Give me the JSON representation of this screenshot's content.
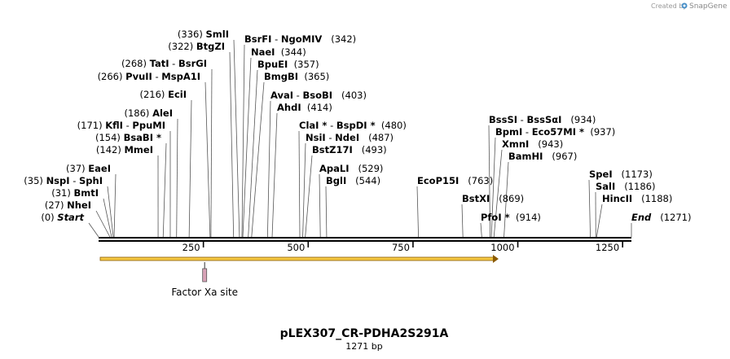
{
  "watermark": {
    "prefix": "Created by",
    "brand": "SnapGene",
    "logo_icon": "snapgene-logo-icon"
  },
  "sequence": {
    "name": "pLEX307_CR-PDHA2S291A",
    "length_label": "1271 bp",
    "length": 1271
  },
  "axis": {
    "ticks": [
      250,
      500,
      750,
      1000,
      1250
    ],
    "tick_labels": [
      "250",
      "500",
      "750",
      "1000",
      "1250"
    ]
  },
  "enzymes": [
    {
      "pos": 0,
      "parts": [
        {
          "t": "(0)",
          "b": false
        },
        {
          "t": " ",
          "b": false
        },
        {
          "t": "Start",
          "b": true,
          "i": true
        }
      ]
    },
    {
      "pos": 27,
      "parts": [
        {
          "t": "(27)",
          "b": false
        },
        {
          "t": " ",
          "b": false
        },
        {
          "t": "NheI",
          "b": true
        }
      ]
    },
    {
      "pos": 31,
      "parts": [
        {
          "t": "(31)",
          "b": false
        },
        {
          "t": " ",
          "b": false
        },
        {
          "t": "BmtI",
          "b": true
        }
      ]
    },
    {
      "pos": 35,
      "parts": [
        {
          "t": "(35)",
          "b": false
        },
        {
          "t": " ",
          "b": false
        },
        {
          "t": "NspI",
          "b": true
        },
        {
          "t": " - ",
          "b": false
        },
        {
          "t": "SphI",
          "b": true
        }
      ]
    },
    {
      "pos": 37,
      "parts": [
        {
          "t": "(37)",
          "b": false
        },
        {
          "t": " ",
          "b": false
        },
        {
          "t": "EaeI",
          "b": true
        }
      ]
    },
    {
      "pos": 142,
      "parts": [
        {
          "t": "(142)",
          "b": false
        },
        {
          "t": " ",
          "b": false
        },
        {
          "t": "MmeI",
          "b": true
        }
      ]
    },
    {
      "pos": 154,
      "parts": [
        {
          "t": "(154)",
          "b": false
        },
        {
          "t": " ",
          "b": false
        },
        {
          "t": "BsaBI *",
          "b": true
        }
      ]
    },
    {
      "pos": 171,
      "parts": [
        {
          "t": "(171)",
          "b": false
        },
        {
          "t": " ",
          "b": false
        },
        {
          "t": "KflI",
          "b": true
        },
        {
          "t": " - ",
          "b": false
        },
        {
          "t": "PpuMI",
          "b": true
        }
      ]
    },
    {
      "pos": 186,
      "parts": [
        {
          "t": "(186)",
          "b": false
        },
        {
          "t": " ",
          "b": false
        },
        {
          "t": "AleI",
          "b": true
        }
      ]
    },
    {
      "pos": 216,
      "parts": [
        {
          "t": "(216)",
          "b": false
        },
        {
          "t": " ",
          "b": false
        },
        {
          "t": "EciI",
          "b": true
        }
      ]
    },
    {
      "pos": 266,
      "parts": [
        {
          "t": "(266)",
          "b": false
        },
        {
          "t": " ",
          "b": false
        },
        {
          "t": "PvuII",
          "b": true
        },
        {
          "t": " - ",
          "b": false
        },
        {
          "t": "MspA1I",
          "b": true
        }
      ]
    },
    {
      "pos": 268,
      "parts": [
        {
          "t": "(268)",
          "b": false
        },
        {
          "t": " ",
          "b": false
        },
        {
          "t": "TatI",
          "b": true
        },
        {
          "t": " - ",
          "b": false
        },
        {
          "t": "BsrGI",
          "b": true
        }
      ]
    },
    {
      "pos": 322,
      "parts": [
        {
          "t": "(322)",
          "b": false
        },
        {
          "t": " ",
          "b": false
        },
        {
          "t": "BtgZI",
          "b": true
        }
      ]
    },
    {
      "pos": 336,
      "parts": [
        {
          "t": "(336)",
          "b": false
        },
        {
          "t": " ",
          "b": false
        },
        {
          "t": "SmlI",
          "b": true
        }
      ]
    },
    {
      "pos": 342,
      "parts": [
        {
          "t": "BsrFI",
          "b": true
        },
        {
          "t": " - ",
          "b": false
        },
        {
          "t": "NgoMIV",
          "b": true
        },
        {
          "t": "   (342)",
          "b": false
        }
      ]
    },
    {
      "pos": 344,
      "parts": [
        {
          "t": "NaeI",
          "b": true
        },
        {
          "t": "  (344)",
          "b": false
        }
      ]
    },
    {
      "pos": 357,
      "parts": [
        {
          "t": "BpuEI",
          "b": true
        },
        {
          "t": "  (357)",
          "b": false
        }
      ]
    },
    {
      "pos": 365,
      "parts": [
        {
          "t": "BmgBI",
          "b": true
        },
        {
          "t": "  (365)",
          "b": false
        }
      ]
    },
    {
      "pos": 403,
      "parts": [
        {
          "t": "AvaI",
          "b": true
        },
        {
          "t": " - ",
          "b": false
        },
        {
          "t": "BsoBI",
          "b": true
        },
        {
          "t": "   (403)",
          "b": false
        }
      ]
    },
    {
      "pos": 414,
      "parts": [
        {
          "t": "AhdI",
          "b": true
        },
        {
          "t": "  (414)",
          "b": false
        }
      ]
    },
    {
      "pos": 480,
      "parts": [
        {
          "t": "ClaI *",
          "b": true
        },
        {
          "t": " - ",
          "b": false
        },
        {
          "t": "BspDI *",
          "b": true
        },
        {
          "t": "  (480)",
          "b": false
        }
      ]
    },
    {
      "pos": 487,
      "parts": [
        {
          "t": "NsiI",
          "b": true
        },
        {
          "t": " - ",
          "b": false
        },
        {
          "t": "NdeI",
          "b": true
        },
        {
          "t": "   (487)",
          "b": false
        }
      ]
    },
    {
      "pos": 493,
      "parts": [
        {
          "t": "BstZ17I",
          "b": true
        },
        {
          "t": "   (493)",
          "b": false
        }
      ]
    },
    {
      "pos": 529,
      "parts": [
        {
          "t": "ApaLI",
          "b": true
        },
        {
          "t": "   (529)",
          "b": false
        }
      ]
    },
    {
      "pos": 544,
      "parts": [
        {
          "t": "BglI",
          "b": true
        },
        {
          "t": "   (544)",
          "b": false
        }
      ]
    },
    {
      "pos": 763,
      "parts": [
        {
          "t": "EcoP15I",
          "b": true
        },
        {
          "t": "   (763)",
          "b": false
        }
      ]
    },
    {
      "pos": 869,
      "parts": [
        {
          "t": "BstXI",
          "b": true
        },
        {
          "t": "   (869)",
          "b": false
        }
      ]
    },
    {
      "pos": 914,
      "parts": [
        {
          "t": "PfoI *",
          "b": true
        },
        {
          "t": "  (914)",
          "b": false
        }
      ]
    },
    {
      "pos": 934,
      "parts": [
        {
          "t": "BssSI",
          "b": true
        },
        {
          "t": " - ",
          "b": false
        },
        {
          "t": "BssSαI",
          "b": true
        },
        {
          "t": "   (934)",
          "b": false
        }
      ]
    },
    {
      "pos": 937,
      "parts": [
        {
          "t": "BpmI",
          "b": true
        },
        {
          "t": " - ",
          "b": false
        },
        {
          "t": "Eco57MI *",
          "b": true
        },
        {
          "t": "  (937)",
          "b": false
        }
      ]
    },
    {
      "pos": 943,
      "parts": [
        {
          "t": "XmnI",
          "b": true
        },
        {
          "t": "   (943)",
          "b": false
        }
      ]
    },
    {
      "pos": 967,
      "parts": [
        {
          "t": "BamHI",
          "b": true
        },
        {
          "t": "   (967)",
          "b": false
        }
      ]
    },
    {
      "pos": 1173,
      "parts": [
        {
          "t": "SpeI",
          "b": true
        },
        {
          "t": "   (1173)",
          "b": false
        }
      ]
    },
    {
      "pos": 1186,
      "parts": [
        {
          "t": "SalI",
          "b": true
        },
        {
          "t": "   (1186)",
          "b": false
        }
      ]
    },
    {
      "pos": 1188,
      "parts": [
        {
          "t": "HincII",
          "b": true
        },
        {
          "t": "   (1188)",
          "b": false
        }
      ]
    },
    {
      "pos": 1271,
      "parts": [
        {
          "t": "End",
          "b": true,
          "i": true
        },
        {
          "t": "   (1271)",
          "b": false
        }
      ]
    }
  ],
  "features": [
    {
      "type": "orf-arrow",
      "start": 0,
      "end": 960,
      "color": "#f5c842",
      "outline": "#8b5a00"
    },
    {
      "type": "site",
      "label": "Factor Xa site",
      "pos": 253,
      "color": "#d9a3b8"
    }
  ],
  "colors": {
    "backbone": "#000000",
    "leader": "#555555",
    "snapgene_brand": "#4a90c8"
  }
}
